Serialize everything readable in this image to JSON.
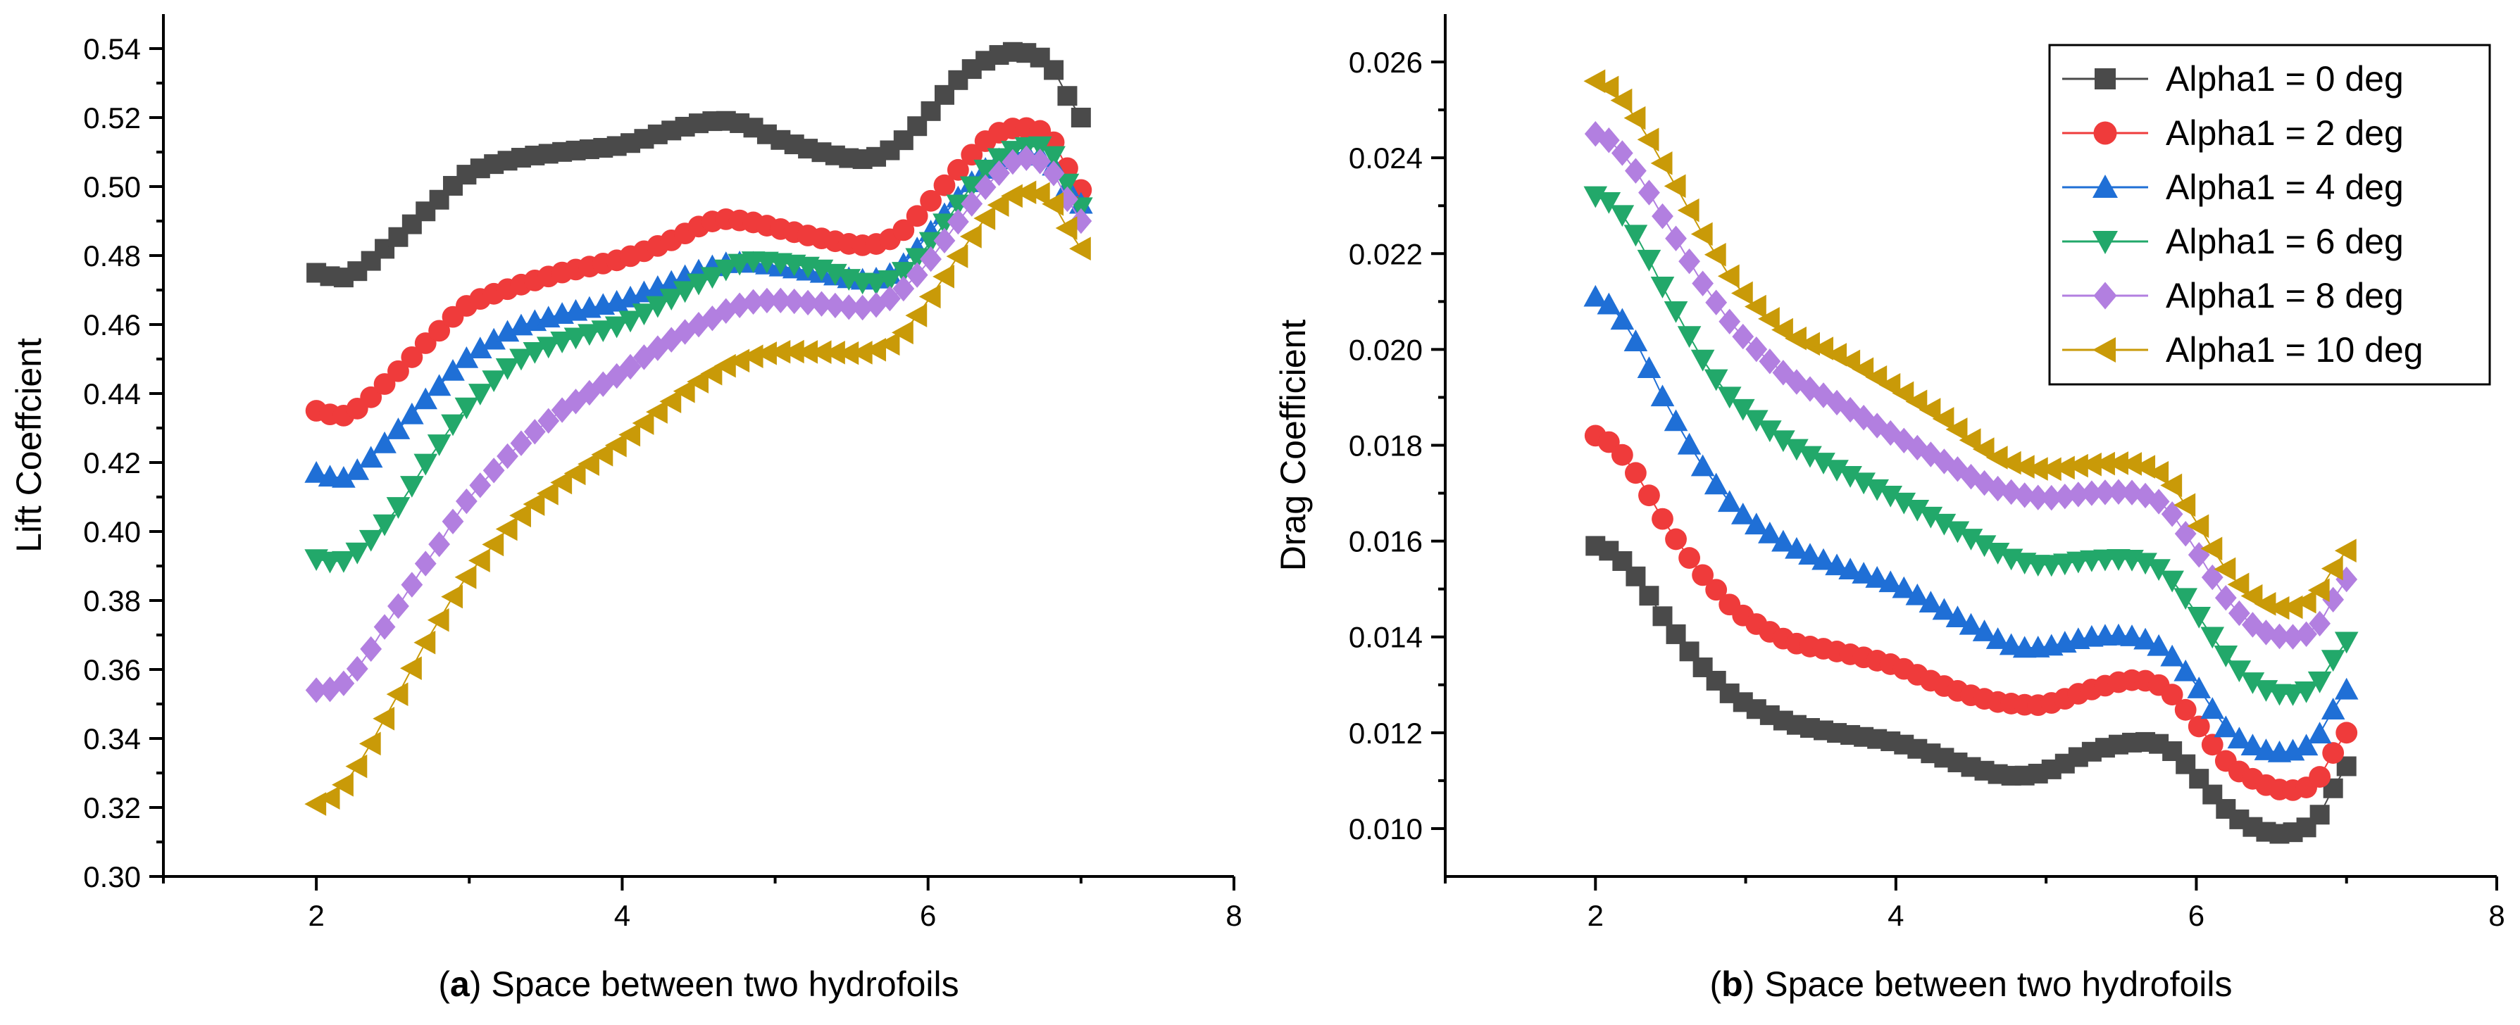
{
  "colors": {
    "Alpha1 = 0 deg": "#4a4a4a",
    "Alpha1 = 2 deg": "#ef3b3b",
    "Alpha1 = 4 deg": "#1f6fd6",
    "Alpha1 = 6 deg": "#22a86a",
    "Alpha1 = 8 deg": "#b27fe0",
    "Alpha1 = 10 deg": "#c99a08"
  },
  "markers": {
    "Alpha1 = 0 deg": "square",
    "Alpha1 = 2 deg": "circle",
    "Alpha1 = 4 deg": "triangle-up",
    "Alpha1 = 6 deg": "triangle-down",
    "Alpha1 = 8 deg": "diamond",
    "Alpha1 = 10 deg": "triangle-left"
  },
  "chart_data": [
    {
      "type": "line",
      "panel_letter": "a",
      "xlabel": "Space between two hydrofoils",
      "ylabel": "Lift Coeffcient",
      "xlim": [
        1,
        8
      ],
      "ylim": [
        0.3,
        0.55
      ],
      "xticks": [
        "2",
        "4",
        "6",
        "8"
      ],
      "yticks": [
        "0.30",
        "0.32",
        "0.34",
        "0.36",
        "0.38",
        "0.40",
        "0.42",
        "0.44",
        "0.46",
        "0.48",
        "0.50",
        "0.52",
        "0.54"
      ],
      "legend": "none",
      "grid": false,
      "series": [
        {
          "name": "Alpha1 = 0 deg",
          "x": [
            2.0,
            2.2,
            2.5,
            2.8,
            3.0,
            3.3,
            3.6,
            4.0,
            4.3,
            4.6,
            4.8,
            5.0,
            5.3,
            5.6,
            5.8,
            6.0,
            6.2,
            6.4,
            6.6,
            6.8,
            7.0
          ],
          "y": [
            0.475,
            0.474,
            0.484,
            0.496,
            0.504,
            0.508,
            0.51,
            0.512,
            0.516,
            0.519,
            0.518,
            0.514,
            0.51,
            0.508,
            0.512,
            0.521,
            0.531,
            0.537,
            0.539,
            0.535,
            0.52
          ]
        },
        {
          "name": "Alpha1 = 2 deg",
          "x": [
            2.0,
            2.2,
            2.5,
            2.8,
            3.0,
            3.3,
            3.6,
            4.0,
            4.3,
            4.6,
            4.8,
            5.0,
            5.3,
            5.6,
            5.8,
            6.0,
            6.2,
            6.4,
            6.6,
            6.8,
            7.0
          ],
          "y": [
            0.435,
            0.434,
            0.445,
            0.458,
            0.466,
            0.471,
            0.475,
            0.479,
            0.484,
            0.49,
            0.49,
            0.488,
            0.485,
            0.483,
            0.486,
            0.495,
            0.505,
            0.514,
            0.517,
            0.514,
            0.499
          ]
        },
        {
          "name": "Alpha1 = 4 deg",
          "x": [
            2.0,
            2.2,
            2.5,
            2.8,
            3.0,
            3.3,
            3.6,
            4.0,
            4.3,
            4.6,
            4.8,
            5.0,
            5.3,
            5.6,
            5.8,
            6.0,
            6.2,
            6.4,
            6.6,
            6.8,
            7.0
          ],
          "y": [
            0.417,
            0.416,
            0.428,
            0.442,
            0.451,
            0.459,
            0.463,
            0.467,
            0.472,
            0.477,
            0.478,
            0.477,
            0.475,
            0.473,
            0.476,
            0.486,
            0.497,
            0.506,
            0.51,
            0.507,
            0.495
          ]
        },
        {
          "name": "Alpha1 = 6 deg",
          "x": [
            2.0,
            2.2,
            2.5,
            2.8,
            3.0,
            3.3,
            3.6,
            4.0,
            4.3,
            4.6,
            4.8,
            5.0,
            5.3,
            5.6,
            5.8,
            6.0,
            6.2,
            6.4,
            6.6,
            6.8,
            7.0
          ],
          "y": [
            0.392,
            0.392,
            0.405,
            0.425,
            0.437,
            0.449,
            0.455,
            0.46,
            0.467,
            0.474,
            0.478,
            0.478,
            0.476,
            0.472,
            0.474,
            0.483,
            0.495,
            0.506,
            0.511,
            0.51,
            0.494
          ]
        },
        {
          "name": "Alpha1 = 8 deg",
          "x": [
            2.0,
            2.2,
            2.5,
            2.8,
            3.0,
            3.3,
            3.6,
            4.0,
            4.3,
            4.6,
            4.8,
            5.0,
            5.3,
            5.6,
            5.8,
            6.0,
            6.2,
            6.4,
            6.6,
            6.8,
            7.0
          ],
          "y": [
            0.354,
            0.357,
            0.376,
            0.396,
            0.41,
            0.424,
            0.435,
            0.446,
            0.455,
            0.462,
            0.466,
            0.467,
            0.466,
            0.465,
            0.469,
            0.478,
            0.49,
            0.501,
            0.508,
            0.505,
            0.49
          ]
        },
        {
          "name": "Alpha1 = 10 deg",
          "x": [
            2.0,
            2.2,
            2.5,
            2.8,
            3.0,
            3.3,
            3.6,
            4.0,
            4.3,
            4.6,
            4.8,
            5.0,
            5.3,
            5.6,
            5.8,
            6.0,
            6.2,
            6.4,
            6.6,
            6.8,
            7.0
          ],
          "y": [
            0.321,
            0.328,
            0.35,
            0.374,
            0.388,
            0.403,
            0.414,
            0.426,
            0.437,
            0.446,
            0.45,
            0.452,
            0.452,
            0.452,
            0.456,
            0.467,
            0.48,
            0.492,
            0.498,
            0.496,
            0.482
          ]
        }
      ]
    },
    {
      "type": "line",
      "panel_letter": "b",
      "xlabel": "Space between two hydrofoils",
      "ylabel": "Drag Coefficient",
      "xlim": [
        1,
        8
      ],
      "ylim": [
        0.009,
        0.027
      ],
      "xticks": [
        "2",
        "4",
        "6",
        "8"
      ],
      "yticks": [
        "0.010",
        "0.012",
        "0.014",
        "0.016",
        "0.018",
        "0.020",
        "0.022",
        "0.024",
        "0.026"
      ],
      "legend": "top-right",
      "grid": false,
      "series": [
        {
          "name": "Alpha1 = 0 deg",
          "x": [
            2.0,
            2.2,
            2.5,
            2.8,
            3.0,
            3.3,
            3.6,
            4.0,
            4.3,
            4.6,
            4.8,
            5.0,
            5.3,
            5.6,
            5.8,
            6.0,
            6.2,
            6.4,
            6.6,
            6.8,
            7.0
          ],
          "y": [
            0.0159,
            0.0155,
            0.0142,
            0.0131,
            0.0126,
            0.0122,
            0.012,
            0.0118,
            0.0115,
            0.0112,
            0.0111,
            0.0112,
            0.0116,
            0.0118,
            0.0117,
            0.0111,
            0.0104,
            0.01,
            0.0099,
            0.0102,
            0.0113
          ]
        },
        {
          "name": "Alpha1 = 2 deg",
          "x": [
            2.0,
            2.2,
            2.5,
            2.8,
            3.0,
            3.3,
            3.6,
            4.0,
            4.3,
            4.6,
            4.8,
            5.0,
            5.3,
            5.6,
            5.8,
            6.0,
            6.2,
            6.4,
            6.6,
            6.8,
            7.0
          ],
          "y": [
            0.0182,
            0.0177,
            0.0162,
            0.015,
            0.0144,
            0.0139,
            0.0137,
            0.0134,
            0.013,
            0.0127,
            0.0126,
            0.0126,
            0.0129,
            0.0131,
            0.0129,
            0.0122,
            0.0114,
            0.011,
            0.0108,
            0.011,
            0.012
          ]
        },
        {
          "name": "Alpha1 = 4 deg",
          "x": [
            2.0,
            2.2,
            2.5,
            2.8,
            3.0,
            3.3,
            3.6,
            4.0,
            4.3,
            4.6,
            4.8,
            5.0,
            5.3,
            5.6,
            5.8,
            6.0,
            6.2,
            6.4,
            6.6,
            6.8,
            7.0
          ],
          "y": [
            0.0211,
            0.0205,
            0.0187,
            0.0172,
            0.0165,
            0.0159,
            0.0155,
            0.0151,
            0.0146,
            0.0141,
            0.0138,
            0.0138,
            0.014,
            0.014,
            0.0137,
            0.013,
            0.0121,
            0.0117,
            0.0116,
            0.0119,
            0.0129
          ]
        },
        {
          "name": "Alpha1 = 6 deg",
          "x": [
            2.0,
            2.2,
            2.5,
            2.8,
            3.0,
            3.3,
            3.6,
            4.0,
            4.3,
            4.6,
            4.8,
            5.0,
            5.3,
            5.6,
            5.8,
            6.0,
            6.2,
            6.4,
            6.6,
            6.8,
            7.0
          ],
          "y": [
            0.0232,
            0.0227,
            0.021,
            0.0194,
            0.0187,
            0.018,
            0.0175,
            0.0169,
            0.0164,
            0.0159,
            0.0156,
            0.0155,
            0.0156,
            0.0156,
            0.0153,
            0.0145,
            0.0136,
            0.013,
            0.0128,
            0.013,
            0.0139
          ]
        },
        {
          "name": "Alpha1 = 8 deg",
          "x": [
            2.0,
            2.2,
            2.5,
            2.8,
            3.0,
            3.3,
            3.6,
            4.0,
            4.3,
            4.6,
            4.8,
            5.0,
            5.3,
            5.6,
            5.8,
            6.0,
            6.2,
            6.4,
            6.6,
            6.8,
            7.0
          ],
          "y": [
            0.0245,
            0.024,
            0.0225,
            0.021,
            0.0202,
            0.0194,
            0.0189,
            0.0182,
            0.0177,
            0.0172,
            0.017,
            0.0169,
            0.017,
            0.017,
            0.0167,
            0.0158,
            0.0148,
            0.0142,
            0.014,
            0.0142,
            0.0152
          ]
        },
        {
          "name": "Alpha1 = 10 deg",
          "x": [
            2.0,
            2.2,
            2.5,
            2.8,
            3.0,
            3.3,
            3.6,
            4.0,
            4.3,
            4.6,
            4.8,
            5.0,
            5.3,
            5.6,
            5.8,
            6.0,
            6.2,
            6.4,
            6.6,
            6.8,
            7.0
          ],
          "y": [
            0.0256,
            0.0251,
            0.0236,
            0.022,
            0.0211,
            0.0203,
            0.0199,
            0.0192,
            0.0186,
            0.0179,
            0.0176,
            0.0175,
            0.0176,
            0.0176,
            0.0173,
            0.0164,
            0.0154,
            0.0148,
            0.0146,
            0.0149,
            0.0158
          ]
        }
      ]
    }
  ]
}
